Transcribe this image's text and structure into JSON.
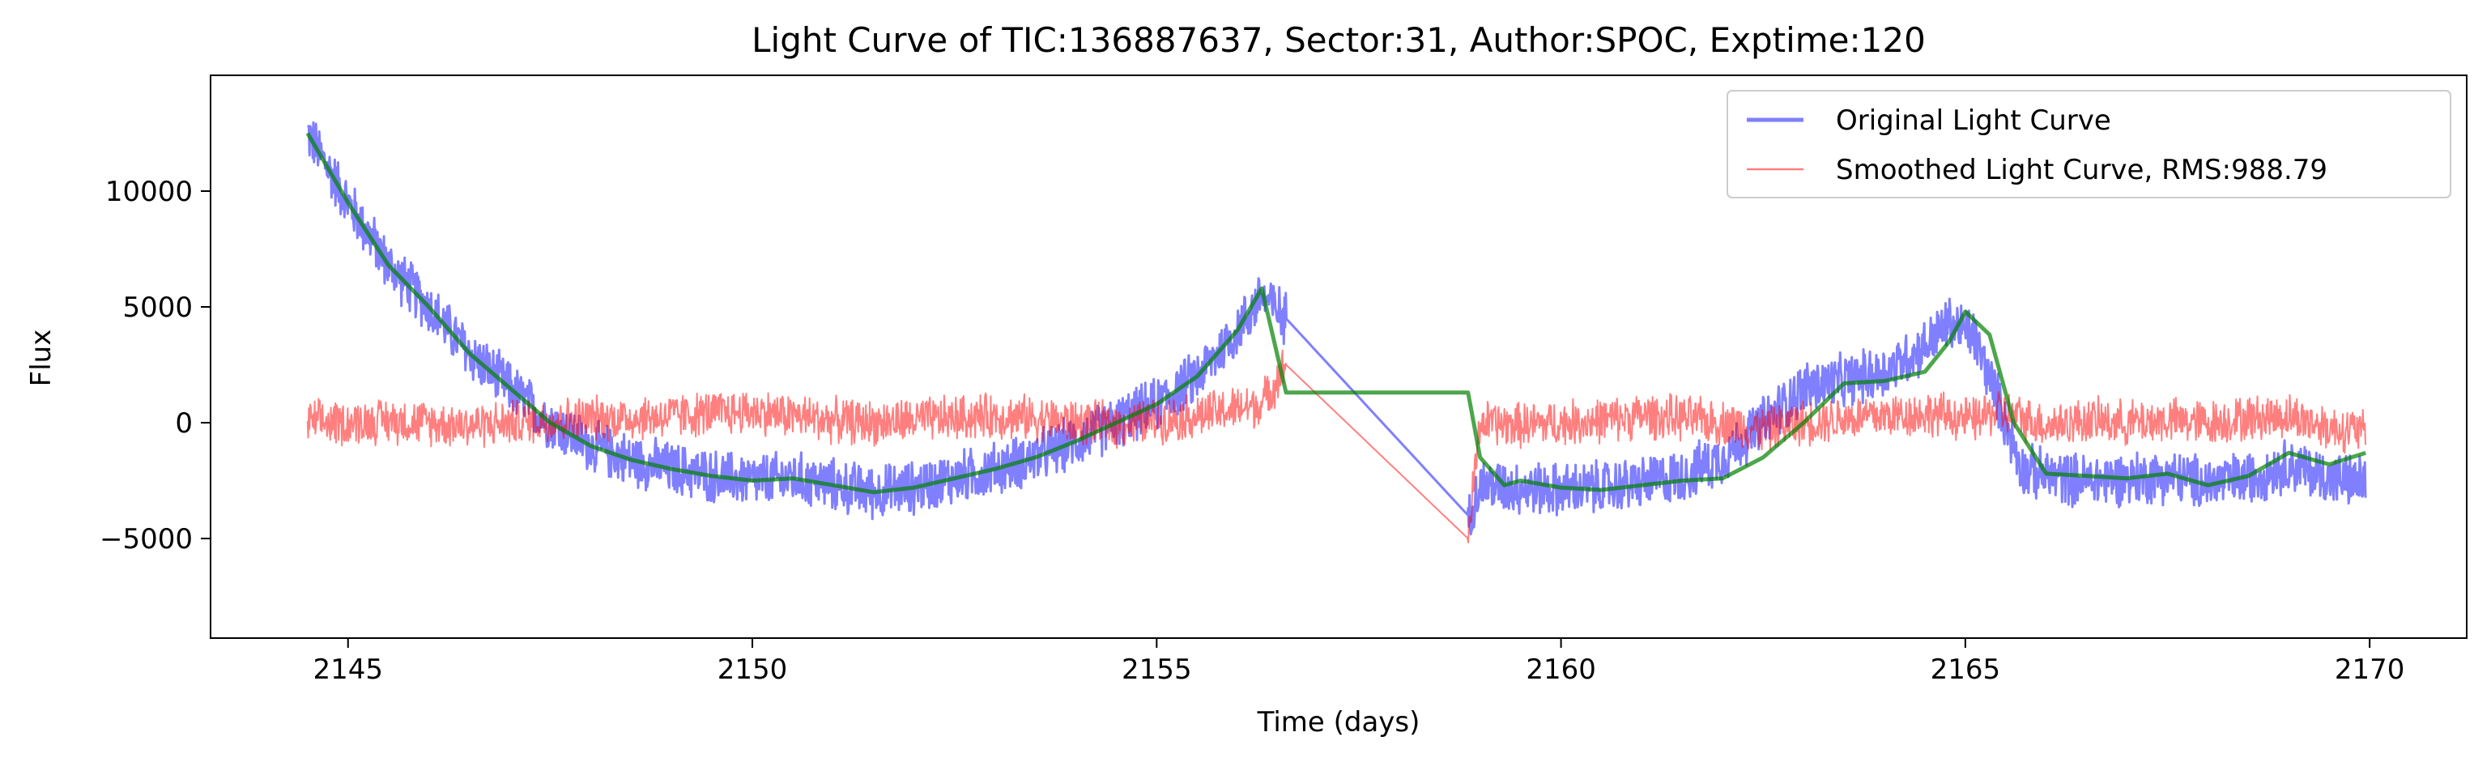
{
  "chart_data": {
    "type": "line",
    "title": "Light Curve of TIC:136887637, Sector:31, Author:SPOC, Exptime:120",
    "xlabel": "Time (days)",
    "ylabel": "Flux",
    "xlim": [
      2143.3,
      2171.2
    ],
    "ylim": [
      -9300,
      15000
    ],
    "x_ticks": [
      2145,
      2150,
      2155,
      2160,
      2165,
      2170
    ],
    "x_tick_labels": [
      "2145",
      "2150",
      "2155",
      "2160",
      "2165",
      "2170"
    ],
    "y_ticks": [
      -5000,
      0,
      5000,
      10000
    ],
    "y_tick_labels": [
      "−5000",
      "0",
      "5000",
      "10000"
    ],
    "grid": false,
    "legend_position": "top-right",
    "legend": [
      {
        "label": "Original Light Curve",
        "color": "#0000ff"
      },
      {
        "label": "Smoothed Light Curve, RMS:988.79",
        "color": "#ff0000"
      }
    ],
    "series": [
      {
        "name": "Original Light Curve",
        "color": "#0000ff",
        "x": [
          2144.5,
          2145.0,
          2145.5,
          2146.0,
          2146.5,
          2147.0,
          2147.5,
          2148.0,
          2148.5,
          2149.0,
          2149.5,
          2150.0,
          2150.5,
          2151.0,
          2151.5,
          2152.0,
          2152.5,
          2153.0,
          2153.5,
          2154.0,
          2154.5,
          2155.0,
          2155.5,
          2156.0,
          2156.3,
          2156.6,
          2158.85,
          2159.0,
          2159.5,
          2160.0,
          2160.5,
          2161.0,
          2161.5,
          2162.0,
          2162.5,
          2163.0,
          2163.5,
          2164.0,
          2164.5,
          2164.8,
          2165.1,
          2165.4,
          2165.7,
          2166.0,
          2166.5,
          2167.0,
          2167.5,
          2168.0,
          2168.5,
          2169.0,
          2169.5,
          2169.95
        ],
        "y": [
          12500,
          9500,
          6800,
          5000,
          3000,
          1500,
          0,
          -1000,
          -1600,
          -2000,
          -2300,
          -2500,
          -2400,
          -2700,
          -3000,
          -2800,
          -2400,
          -2000,
          -1500,
          -800,
          0,
          800,
          2000,
          4000,
          5500,
          4500,
          -4000,
          -2700,
          -2800,
          -2900,
          -2800,
          -2600,
          -2300,
          -1500,
          0,
          1500,
          1800,
          2200,
          3300,
          4300,
          3800,
          1000,
          -2000,
          -2300,
          -2500,
          -2400,
          -2300,
          -2600,
          -2400,
          -1800,
          -2400,
          -2600
        ],
        "noise_amplitude": 1300
      },
      {
        "name": "Smoothed Light Curve, RMS:988.79",
        "color": "#ff0000",
        "x": [
          2144.5,
          2145.0,
          2145.5,
          2146.0,
          2146.5,
          2147.0,
          2147.5,
          2148.0,
          2148.5,
          2149.0,
          2149.5,
          2150.0,
          2150.5,
          2151.0,
          2151.5,
          2152.0,
          2152.5,
          2153.0,
          2153.5,
          2154.0,
          2154.5,
          2155.0,
          2155.5,
          2156.0,
          2156.3,
          2156.6,
          2158.85,
          2159.0,
          2159.5,
          2160.0,
          2160.5,
          2161.0,
          2161.5,
          2162.0,
          2162.5,
          2163.0,
          2163.5,
          2164.0,
          2164.5,
          2164.8,
          2165.1,
          2165.4,
          2165.7,
          2166.0,
          2166.5,
          2167.0,
          2167.5,
          2168.0,
          2168.5,
          2169.0,
          2169.5,
          2169.95
        ],
        "y": [
          0,
          0,
          100,
          0,
          -100,
          0,
          100,
          200,
          200,
          300,
          400,
          500,
          300,
          100,
          0,
          100,
          200,
          300,
          200,
          0,
          -100,
          100,
          300,
          600,
          800,
          2500,
          -5000,
          0,
          -100,
          0,
          100,
          300,
          200,
          0,
          -300,
          0,
          200,
          300,
          400,
          300,
          100,
          500,
          200,
          -100,
          100,
          0,
          100,
          0,
          200,
          300,
          -200,
          -400
        ],
        "noise_amplitude": 1100
      },
      {
        "name": "",
        "color": "#008000",
        "x": [
          2144.5,
          2145.0,
          2145.5,
          2146.0,
          2146.5,
          2147.0,
          2147.5,
          2148.0,
          2148.5,
          2149.0,
          2149.5,
          2150.0,
          2150.5,
          2151.0,
          2151.5,
          2152.0,
          2152.5,
          2153.0,
          2153.5,
          2154.0,
          2154.5,
          2155.0,
          2155.5,
          2156.0,
          2156.3,
          2156.6,
          2158.85,
          2159.0,
          2159.3,
          2159.5,
          2160.0,
          2160.5,
          2161.0,
          2161.5,
          2162.0,
          2162.5,
          2163.0,
          2163.5,
          2164.0,
          2164.5,
          2164.8,
          2165.0,
          2165.3,
          2165.6,
          2166.0,
          2166.5,
          2167.0,
          2167.5,
          2168.0,
          2168.5,
          2169.0,
          2169.5,
          2169.95
        ],
        "y": [
          12500,
          9500,
          6800,
          5000,
          3000,
          1500,
          0,
          -1000,
          -1600,
          -2000,
          -2300,
          -2500,
          -2400,
          -2700,
          -3000,
          -2800,
          -2400,
          -2000,
          -1500,
          -800,
          0,
          800,
          2000,
          4000,
          5800,
          1300,
          1300,
          -1500,
          -2700,
          -2500,
          -2800,
          -2900,
          -2700,
          -2500,
          -2400,
          -1500,
          0,
          1700,
          1800,
          2200,
          3500,
          4800,
          3800,
          0,
          -2200,
          -2300,
          -2400,
          -2200,
          -2700,
          -2300,
          -1300,
          -1800,
          -1300
        ],
        "noise_amplitude": 0
      }
    ]
  }
}
